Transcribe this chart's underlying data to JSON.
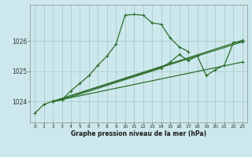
{
  "title": "Graphe pression niveau de la mer (hPa)",
  "bg_color": "#cce8ec",
  "grid_color": "#aacccc",
  "line_color": "#2d6e2d",
  "xlim": [
    -0.5,
    23.5
  ],
  "ylim": [
    1023.3,
    1027.2
  ],
  "xticks": [
    0,
    1,
    2,
    3,
    4,
    5,
    6,
    7,
    8,
    9,
    10,
    11,
    12,
    13,
    14,
    15,
    16,
    17,
    18,
    19,
    20,
    21,
    22,
    23
  ],
  "yticks": [
    1024,
    1025,
    1026
  ],
  "series": [
    {
      "x": [
        0,
        1,
        2,
        3,
        4,
        5,
        6,
        7,
        8,
        9,
        10,
        11,
        12,
        13,
        14,
        15,
        16,
        17
      ],
      "y": [
        1023.6,
        1023.9,
        1024.0,
        1024.05,
        1024.35,
        1024.6,
        1024.85,
        1025.2,
        1025.5,
        1025.9,
        1026.85,
        1026.88,
        1026.85,
        1026.6,
        1026.55,
        1026.1,
        1025.8,
        1025.65
      ]
    },
    {
      "x": [
        2,
        3,
        14,
        15,
        16,
        17,
        18,
        19,
        20,
        21,
        22,
        23
      ],
      "y": [
        1024.0,
        1024.05,
        1025.1,
        1025.3,
        1025.55,
        1025.35,
        1025.5,
        1024.85,
        1025.05,
        1025.2,
        1025.95,
        1025.98
      ]
    },
    {
      "x": [
        2,
        23
      ],
      "y": [
        1024.0,
        1025.3
      ]
    },
    {
      "x": [
        2,
        23
      ],
      "y": [
        1024.0,
        1025.97
      ]
    },
    {
      "x": [
        2,
        23
      ],
      "y": [
        1024.0,
        1026.02
      ]
    }
  ]
}
